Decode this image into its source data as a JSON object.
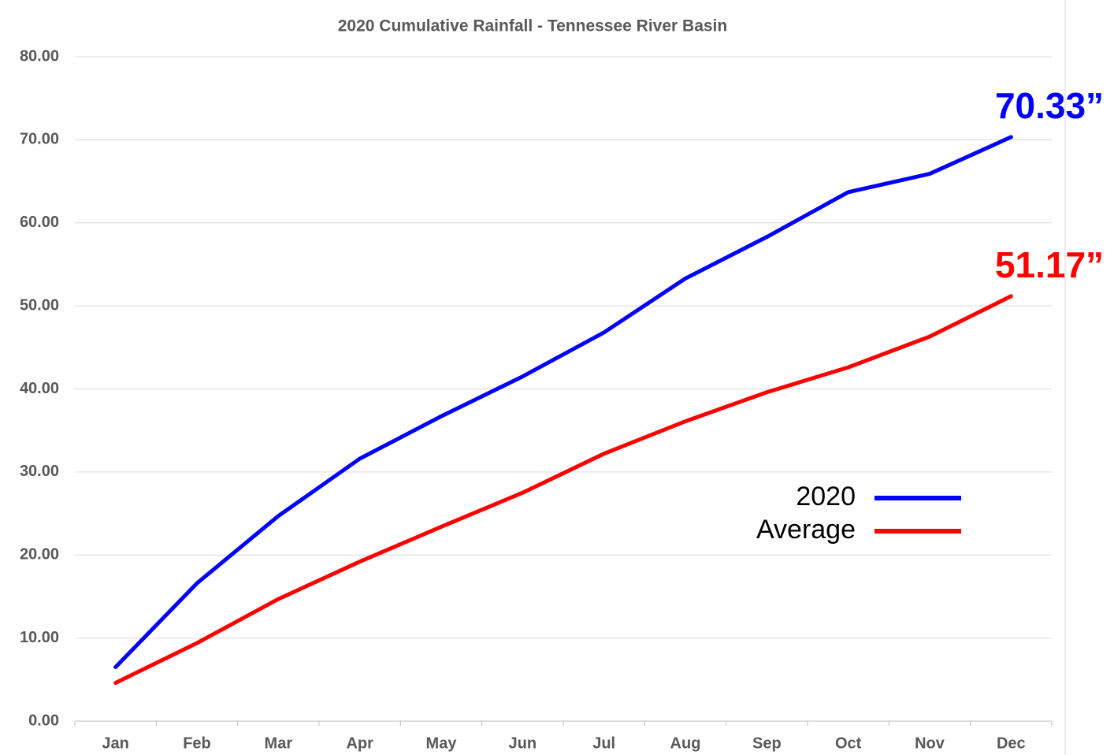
{
  "chart_data": {
    "type": "line",
    "title": "2020 Cumulative Rainfall - Tennessee River Basin",
    "categories": [
      "Jan",
      "Feb",
      "Mar",
      "Apr",
      "May",
      "Jun",
      "Jul",
      "Aug",
      "Sep",
      "Oct",
      "Nov",
      "Dec"
    ],
    "series": [
      {
        "name": "2020",
        "color": "#0000ff",
        "values": [
          6.5,
          16.6,
          24.7,
          31.6,
          36.7,
          41.5,
          46.8,
          53.3,
          58.3,
          63.7,
          65.9,
          70.33
        ],
        "value_labels": [
          null,
          null,
          null,
          null,
          null,
          null,
          null,
          null,
          null,
          null,
          null,
          "70.33”"
        ]
      },
      {
        "name": "Average",
        "color": "#ff0000",
        "values": [
          4.6,
          9.4,
          14.7,
          19.2,
          23.4,
          27.5,
          32.2,
          36.1,
          39.6,
          42.6,
          46.3,
          51.17
        ],
        "value_labels": [
          null,
          null,
          null,
          null,
          null,
          null,
          null,
          null,
          null,
          null,
          null,
          "51.17”"
        ]
      }
    ],
    "ylim": [
      0,
      80
    ],
    "yticks": [
      {
        "value": 0,
        "label": "0.00"
      },
      {
        "value": 10,
        "label": "10.00"
      },
      {
        "value": 20,
        "label": "20.00"
      },
      {
        "value": 30,
        "label": "30.00"
      },
      {
        "value": 40,
        "label": "40.00"
      },
      {
        "value": 50,
        "label": "50.00"
      },
      {
        "value": 60,
        "label": "60.00"
      },
      {
        "value": 70,
        "label": "70.00"
      },
      {
        "value": 80,
        "label": "80.00"
      }
    ],
    "grid": true,
    "legend": "center-right"
  }
}
